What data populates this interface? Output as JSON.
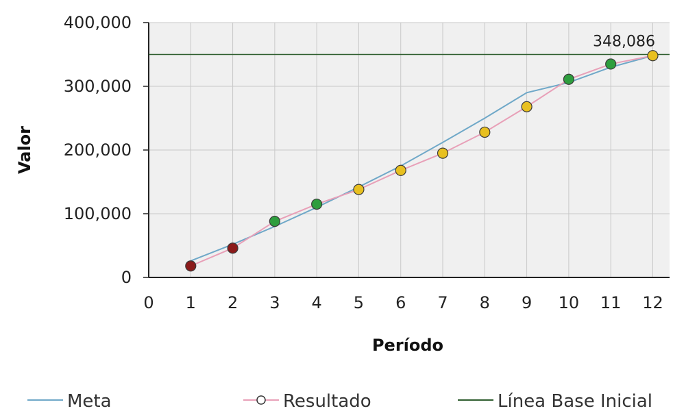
{
  "chart_data": {
    "type": "line",
    "xlabel": "Período",
    "ylabel": "Valor",
    "xlim": [
      0,
      12.4
    ],
    "ylim": [
      0,
      400000
    ],
    "x_ticks": [
      "0",
      "1",
      "2",
      "3",
      "4",
      "5",
      "6",
      "7",
      "8",
      "9",
      "10",
      "11",
      "12"
    ],
    "y_ticks": [
      "0",
      "100,000",
      "200,000",
      "300,000",
      "400,000"
    ],
    "grid": true,
    "legend_position": "bottom",
    "annotation": {
      "text": "348,086",
      "x": 12,
      "y": 348086
    },
    "series": [
      {
        "name": "Meta",
        "color": "#6fa8c8",
        "x": [
          1,
          2,
          3,
          4,
          5,
          6,
          7,
          8,
          9,
          10,
          11,
          12
        ],
        "y": [
          26000,
          52000,
          80000,
          110000,
          142000,
          175000,
          212000,
          250000,
          290000,
          306000,
          330000,
          348086
        ]
      },
      {
        "name": "Resultado",
        "color": "#e8a0b8",
        "x": [
          1,
          2,
          3,
          4,
          5,
          6,
          7,
          8,
          9,
          10,
          11,
          12
        ],
        "y": [
          18000,
          46000,
          88000,
          115000,
          138000,
          168000,
          195000,
          228000,
          268000,
          311000,
          335000,
          348086
        ],
        "marker_colors": [
          "#8b1a1a",
          "#8b1a1a",
          "#2e9e3e",
          "#2e9e3e",
          "#e8c020",
          "#e8c020",
          "#e8c020",
          "#e8c020",
          "#e8c020",
          "#2e9e3e",
          "#2e9e3e",
          "#e8c020"
        ]
      },
      {
        "name": "Línea Base Inicial",
        "color": "#2f5e2f",
        "x": [
          0,
          12.4
        ],
        "y": [
          350000,
          350000
        ]
      }
    ]
  }
}
